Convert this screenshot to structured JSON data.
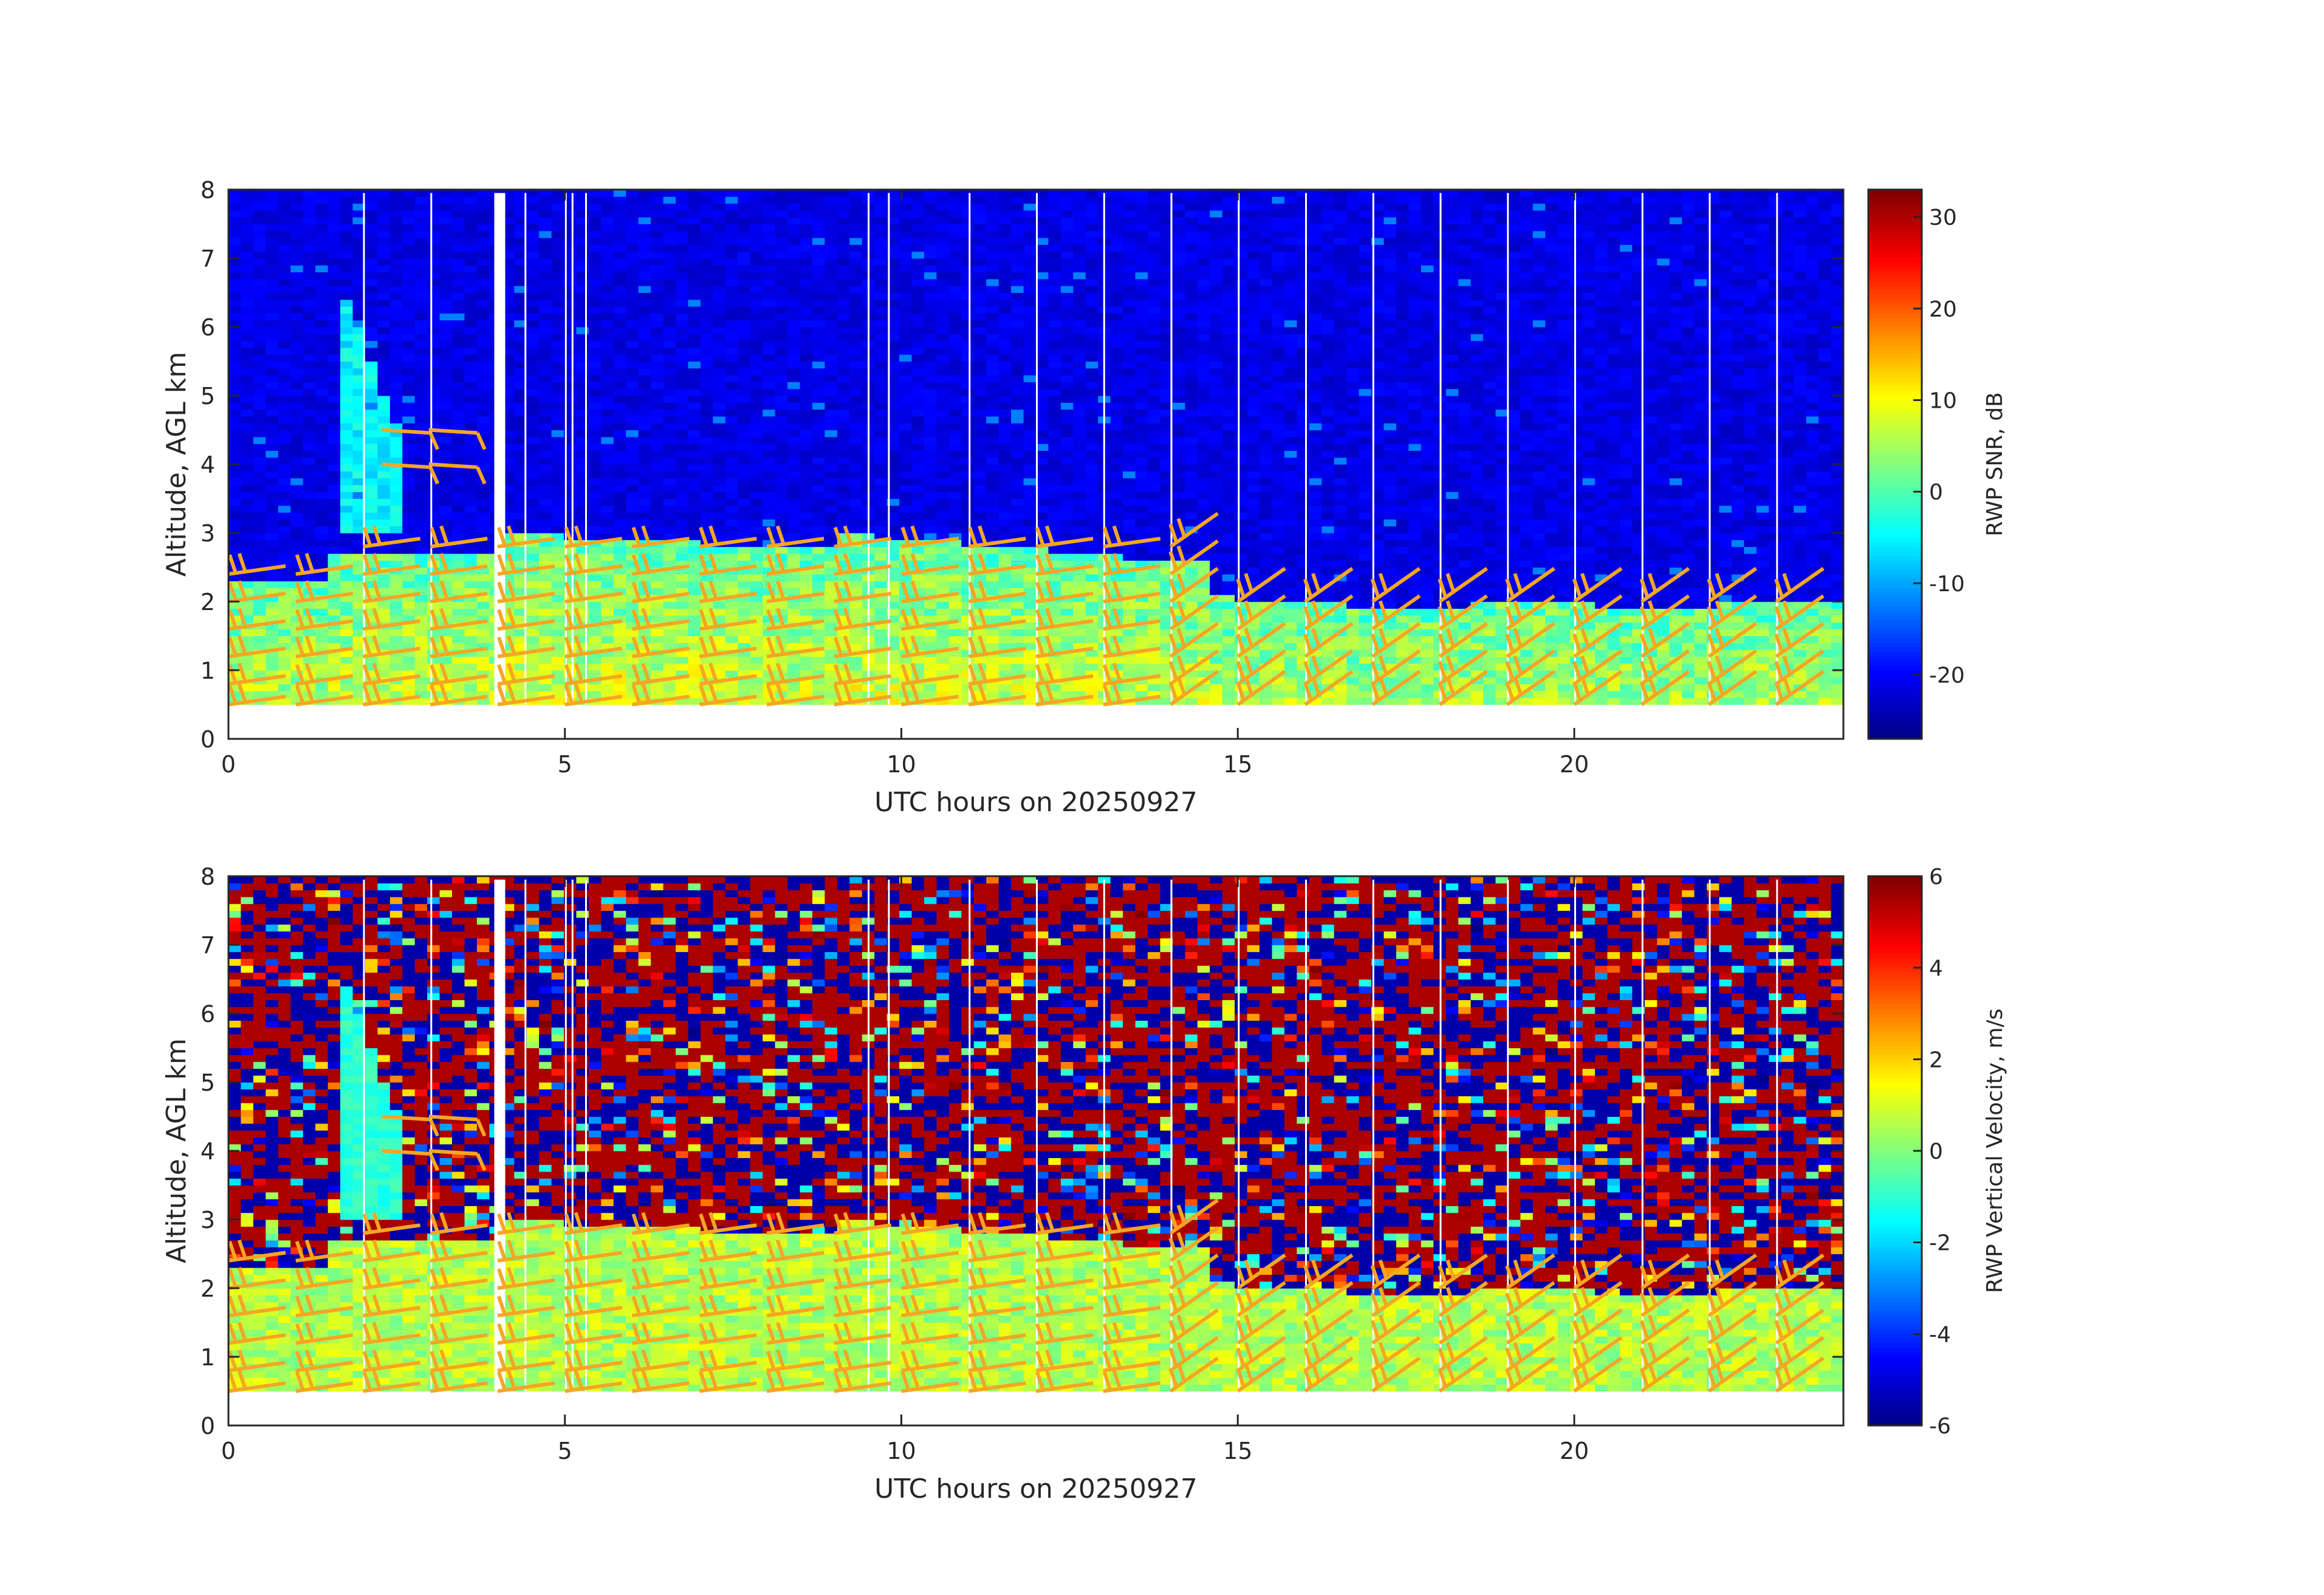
{
  "chart_data": [
    {
      "type": "heatmap",
      "title": "",
      "xlabel": "UTC hours on 20250927",
      "ylabel": "Altitude, AGL km",
      "xlim": [
        0,
        24
      ],
      "ylim": [
        0,
        8
      ],
      "xticks": [
        0,
        5,
        10,
        15,
        20
      ],
      "yticks": [
        0,
        1,
        2,
        3,
        4,
        5,
        6,
        7,
        8
      ],
      "colorbar": {
        "label": "RWP SNR, dB",
        "range": [
          -27,
          33
        ],
        "ticks": [
          -20,
          -10,
          0,
          10,
          20,
          30
        ],
        "colormap": "jet"
      },
      "field": "snr",
      "overlay": "wind barbs (orange)",
      "barb_color": "#f5a623"
    },
    {
      "type": "heatmap",
      "title": "",
      "xlabel": "UTC hours on 20250927",
      "ylabel": "Altitude, AGL km",
      "xlim": [
        0,
        24
      ],
      "ylim": [
        0,
        8
      ],
      "xticks": [
        0,
        5,
        10,
        15,
        20
      ],
      "yticks": [
        0,
        1,
        2,
        3,
        4,
        5,
        6,
        7,
        8
      ],
      "colorbar": {
        "label": "RWP Vertical Velocity, m/s",
        "range": [
          -6,
          6
        ],
        "ticks": [
          -6,
          -4,
          -2,
          0,
          2,
          4,
          6
        ],
        "colormap": "jet"
      },
      "field": "velocity",
      "overlay": "wind barbs (orange)",
      "barb_color": "#f5a623"
    }
  ]
}
